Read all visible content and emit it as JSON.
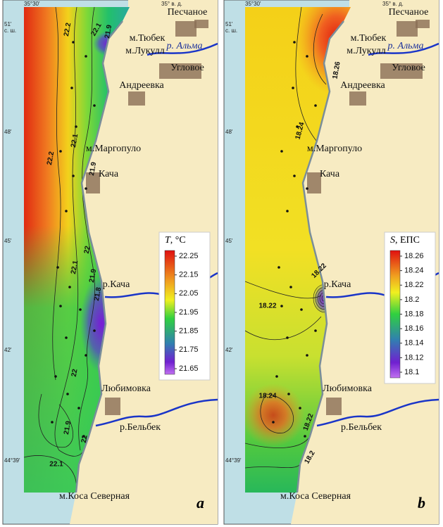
{
  "figure": {
    "top_left_coord": "35°30'",
    "top_right_coord": "35° в. д.",
    "lat_labels": [
      "51'",
      "с. ш.",
      "48'",
      "45'",
      "42'",
      "44°39'"
    ]
  },
  "places": [
    "Песчаное",
    "р. Альма",
    "м.Тюбек",
    "м.Лукулл",
    "Угловое",
    "Андреевка",
    "м.Маргопуло",
    "Кача",
    "р.Кача",
    "Любимовка",
    "р.Бельбек",
    "м.Коса Северная"
  ],
  "panels": [
    {
      "letter": "a",
      "legend": {
        "symbol": "T",
        "unit": ", °C",
        "ticks": [
          22.25,
          22.15,
          22.05,
          21.95,
          21.85,
          21.75,
          21.65
        ]
      },
      "contour_labels": [
        "22.2",
        "22.1",
        "21.9",
        "22.2",
        "22.1",
        "21.9",
        "22",
        "22.1",
        "21.9",
        "21.8",
        "22",
        "21.9",
        "22",
        "22.1"
      ]
    },
    {
      "letter": "b",
      "legend": {
        "symbol": "S",
        "unit": ", ЕПС",
        "ticks": [
          18.26,
          18.24,
          18.22,
          18.2,
          18.18,
          18.16,
          18.14,
          18.12,
          18.1
        ]
      },
      "contour_labels": [
        "18.26",
        "18.24",
        "18.22",
        "18.22",
        "18.24",
        "18.22",
        "18.2"
      ]
    }
  ]
}
